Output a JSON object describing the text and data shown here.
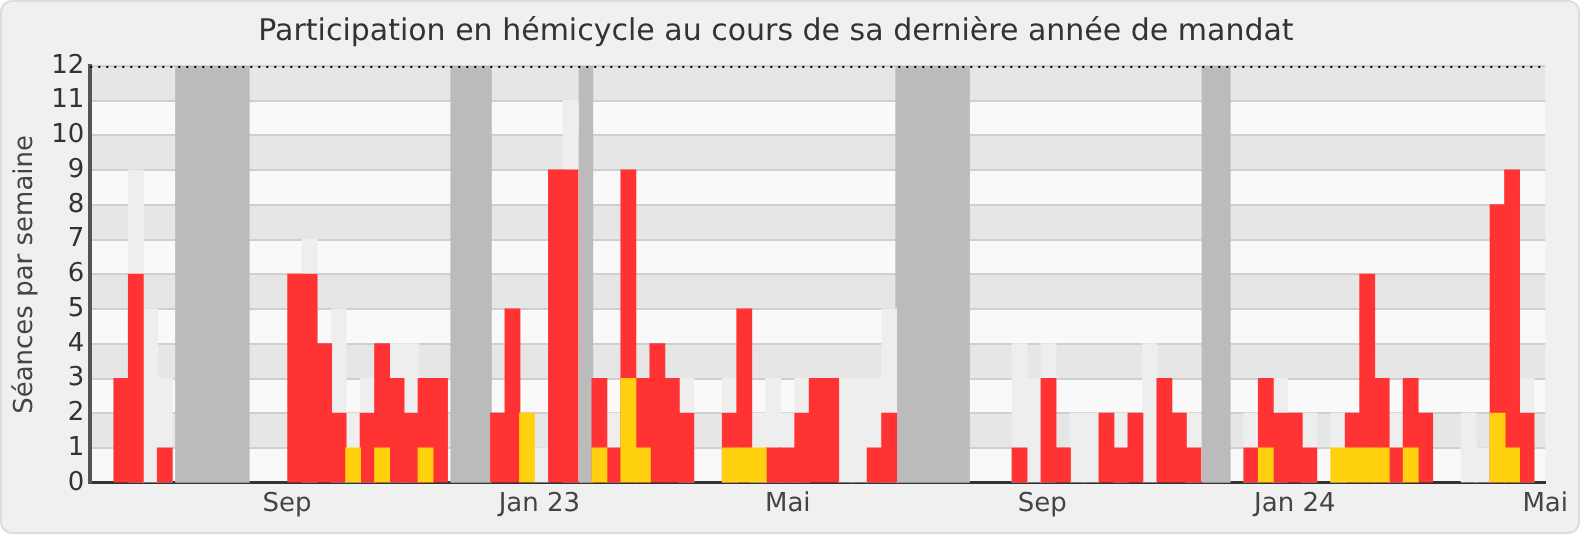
{
  "chart_data": {
    "type": "bar",
    "title": "Participation en hémicycle au cours de sa dernière année de mandat",
    "ylabel": "Séances par semaine",
    "x": [
      "2022-06-13",
      "2022-06-20",
      "2022-06-27",
      "2022-07-04",
      "2022-07-11",
      "2022-07-18",
      "2022-07-25",
      "2022-08-01",
      "2022-08-08",
      "2022-08-15",
      "2022-08-22",
      "2022-08-29",
      "2022-09-05",
      "2022-09-12",
      "2022-09-19",
      "2022-09-26",
      "2022-10-03",
      "2022-10-10",
      "2022-10-17",
      "2022-10-24",
      "2022-10-31",
      "2022-11-07",
      "2022-11-14",
      "2022-11-21",
      "2022-11-28",
      "2022-12-05",
      "2022-12-12",
      "2022-12-19",
      "2022-12-26",
      "2023-01-02",
      "2023-01-09",
      "2023-01-16",
      "2023-01-23",
      "2023-01-30",
      "2023-02-06",
      "2023-02-13",
      "2023-02-20",
      "2023-02-27",
      "2023-03-06",
      "2023-03-13",
      "2023-03-20",
      "2023-03-27",
      "2023-04-03",
      "2023-04-10",
      "2023-04-17",
      "2023-04-24",
      "2023-05-01",
      "2023-05-08",
      "2023-05-15",
      "2023-05-22",
      "2023-05-29",
      "2023-06-05",
      "2023-06-12",
      "2023-06-19",
      "2023-06-26",
      "2023-07-03",
      "2023-07-10",
      "2023-07-17",
      "2023-07-24",
      "2023-07-31",
      "2023-08-07",
      "2023-08-14",
      "2023-08-21",
      "2023-08-28",
      "2023-09-04",
      "2023-09-11",
      "2023-09-18",
      "2023-09-25",
      "2023-10-02",
      "2023-10-09",
      "2023-10-16",
      "2023-10-23",
      "2023-10-30",
      "2023-11-06",
      "2023-11-13",
      "2023-11-20",
      "2023-11-27",
      "2023-12-04",
      "2023-12-11",
      "2023-12-18",
      "2023-12-25",
      "2024-01-01",
      "2024-01-08",
      "2024-01-15",
      "2024-01-22",
      "2024-01-29",
      "2024-02-05",
      "2024-02-12",
      "2024-02-19",
      "2024-02-26",
      "2024-03-04",
      "2024-03-11",
      "2024-03-18",
      "2024-03-25",
      "2024-04-01",
      "2024-04-08",
      "2024-04-15",
      "2024-04-22"
    ],
    "series": [
      {
        "color": "#eeeeee",
        "values": [
          null,
          9,
          5,
          3,
          null,
          null,
          null,
          null,
          null,
          null,
          null,
          null,
          null,
          7,
          null,
          5,
          2,
          3,
          null,
          4,
          4,
          null,
          null,
          null,
          null,
          null,
          null,
          null,
          null,
          1,
          null,
          11,
          null,
          null,
          2,
          null,
          null,
          null,
          null,
          3,
          null,
          null,
          3,
          null,
          2,
          3,
          2,
          3,
          null,
          null,
          3,
          3,
          3,
          5,
          null,
          null,
          null,
          null,
          null,
          null,
          null,
          null,
          4,
          3,
          4,
          null,
          2,
          2,
          null,
          2,
          null,
          4,
          null,
          null,
          2,
          null,
          null,
          null,
          2,
          null,
          3,
          null,
          2,
          null,
          2,
          null,
          null,
          null,
          2,
          null,
          null,
          null,
          null,
          2,
          1,
          null,
          null,
          3
        ]
      },
      {
        "color": "#ff3333",
        "values": [
          3,
          6,
          null,
          1,
          null,
          null,
          null,
          null,
          null,
          null,
          null,
          null,
          6,
          6,
          4,
          2,
          null,
          2,
          4,
          3,
          2,
          3,
          3,
          null,
          null,
          null,
          2,
          5,
          null,
          null,
          9,
          9,
          null,
          3,
          1,
          9,
          3,
          4,
          3,
          2,
          null,
          null,
          2,
          5,
          null,
          1,
          1,
          2,
          3,
          3,
          null,
          null,
          1,
          2,
          null,
          null,
          null,
          null,
          null,
          null,
          null,
          null,
          1,
          null,
          3,
          1,
          null,
          null,
          2,
          1,
          2,
          null,
          3,
          2,
          1,
          null,
          null,
          null,
          1,
          3,
          2,
          2,
          1,
          null,
          null,
          2,
          6,
          3,
          1,
          3,
          2,
          null,
          null,
          null,
          null,
          8,
          9,
          2
        ]
      },
      {
        "color": "#ffd10f",
        "values": [
          null,
          null,
          null,
          null,
          null,
          null,
          null,
          null,
          null,
          null,
          null,
          null,
          null,
          null,
          null,
          null,
          1,
          null,
          1,
          null,
          null,
          1,
          null,
          null,
          null,
          null,
          null,
          null,
          2,
          null,
          null,
          null,
          null,
          1,
          null,
          3,
          1,
          null,
          null,
          null,
          null,
          null,
          1,
          1,
          1,
          null,
          null,
          null,
          null,
          null,
          null,
          null,
          null,
          null,
          null,
          null,
          null,
          null,
          null,
          null,
          null,
          null,
          null,
          null,
          null,
          null,
          null,
          null,
          null,
          null,
          null,
          null,
          null,
          null,
          null,
          null,
          null,
          null,
          null,
          1,
          null,
          null,
          null,
          null,
          1,
          1,
          1,
          1,
          null,
          1,
          null,
          null,
          null,
          null,
          null,
          2,
          1,
          null
        ]
      }
    ],
    "xlim": [
      "2022-05-29",
      "2024-05-01"
    ],
    "xticks": [
      {
        "value": "2022-09-01",
        "label": "Sep"
      },
      {
        "value": "2023-01-01",
        "label": "Jan 23"
      },
      {
        "value": "2023-05-01",
        "label": "Mai"
      },
      {
        "value": "2023-09-01",
        "label": "Sep"
      },
      {
        "value": "2024-01-01",
        "label": "Jan 24"
      },
      {
        "value": "2024-05-01",
        "label": "Mai"
      }
    ],
    "ylim": [
      0,
      12
    ],
    "yticks": [
      0,
      1,
      2,
      3,
      4,
      5,
      6,
      7,
      8,
      9,
      10,
      11,
      12
    ],
    "grid": "y",
    "bands": [
      {
        "axis": "x",
        "from": "2022-07-09",
        "to": "2022-08-14",
        "color": "#bbbbbb"
      },
      {
        "axis": "x",
        "from": "2022-11-19",
        "to": "2022-12-09",
        "color": "#bbbbbb"
      },
      {
        "axis": "x",
        "from": "2023-01-20",
        "to": "2023-01-27",
        "color": "#bbbbbb"
      },
      {
        "axis": "x",
        "from": "2023-06-22",
        "to": "2023-07-28",
        "color": "#bbbbbb"
      },
      {
        "axis": "x",
        "from": "2023-11-17",
        "to": "2023-12-01",
        "color": "#bbbbbb"
      }
    ],
    "ref_lines": [
      {
        "axis": "y",
        "value": 12,
        "color": "#000000",
        "line_style": "dotted"
      }
    ]
  }
}
